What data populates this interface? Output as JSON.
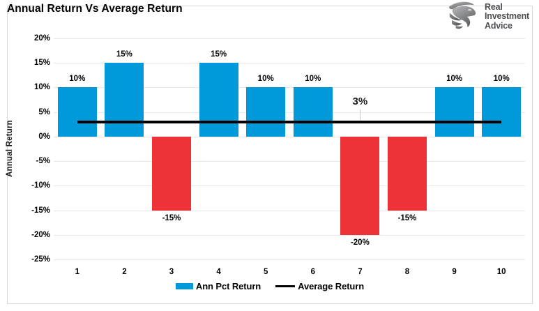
{
  "header": {
    "title": "Annual Return Vs Average Return"
  },
  "logo": {
    "line1": "Real",
    "line2": "Investment",
    "line3": "Advice"
  },
  "chart_data": {
    "type": "bar",
    "title": "Annual Return Vs Average Return",
    "categories": [
      "1",
      "2",
      "3",
      "4",
      "5",
      "6",
      "7",
      "8",
      "9",
      "10"
    ],
    "series": [
      {
        "name": "Ann Pct Return",
        "type": "bar",
        "values": [
          10,
          15,
          -15,
          15,
          10,
          10,
          -20,
          -15,
          10,
          10
        ]
      },
      {
        "name": "Average Return",
        "type": "line",
        "value": 3
      }
    ],
    "data_labels": [
      "10%",
      "15%",
      "-15%",
      "15%",
      "10%",
      "10%",
      "-20%",
      "-15%",
      "10%",
      "10%"
    ],
    "avg_label": "3%",
    "xlabel": "",
    "ylabel": "Annual Return",
    "ylim": [
      -25,
      20
    ],
    "ytick_step": 5,
    "yticks": [
      "20%",
      "15%",
      "10%",
      "5%",
      "0%",
      "-5%",
      "-10%",
      "-15%",
      "-20%",
      "-25%"
    ],
    "grid": "on",
    "legend_position": "bottom",
    "legend": [
      {
        "label": "Ann Pct Return",
        "swatch": "#0099da",
        "type": "rect"
      },
      {
        "label": "Average Return",
        "swatch": "#000000",
        "type": "line"
      }
    ],
    "colors": {
      "positive": "#0099da",
      "negative": "#ee3338",
      "average_line": "#000000",
      "grid": "#e8e8e8"
    }
  }
}
